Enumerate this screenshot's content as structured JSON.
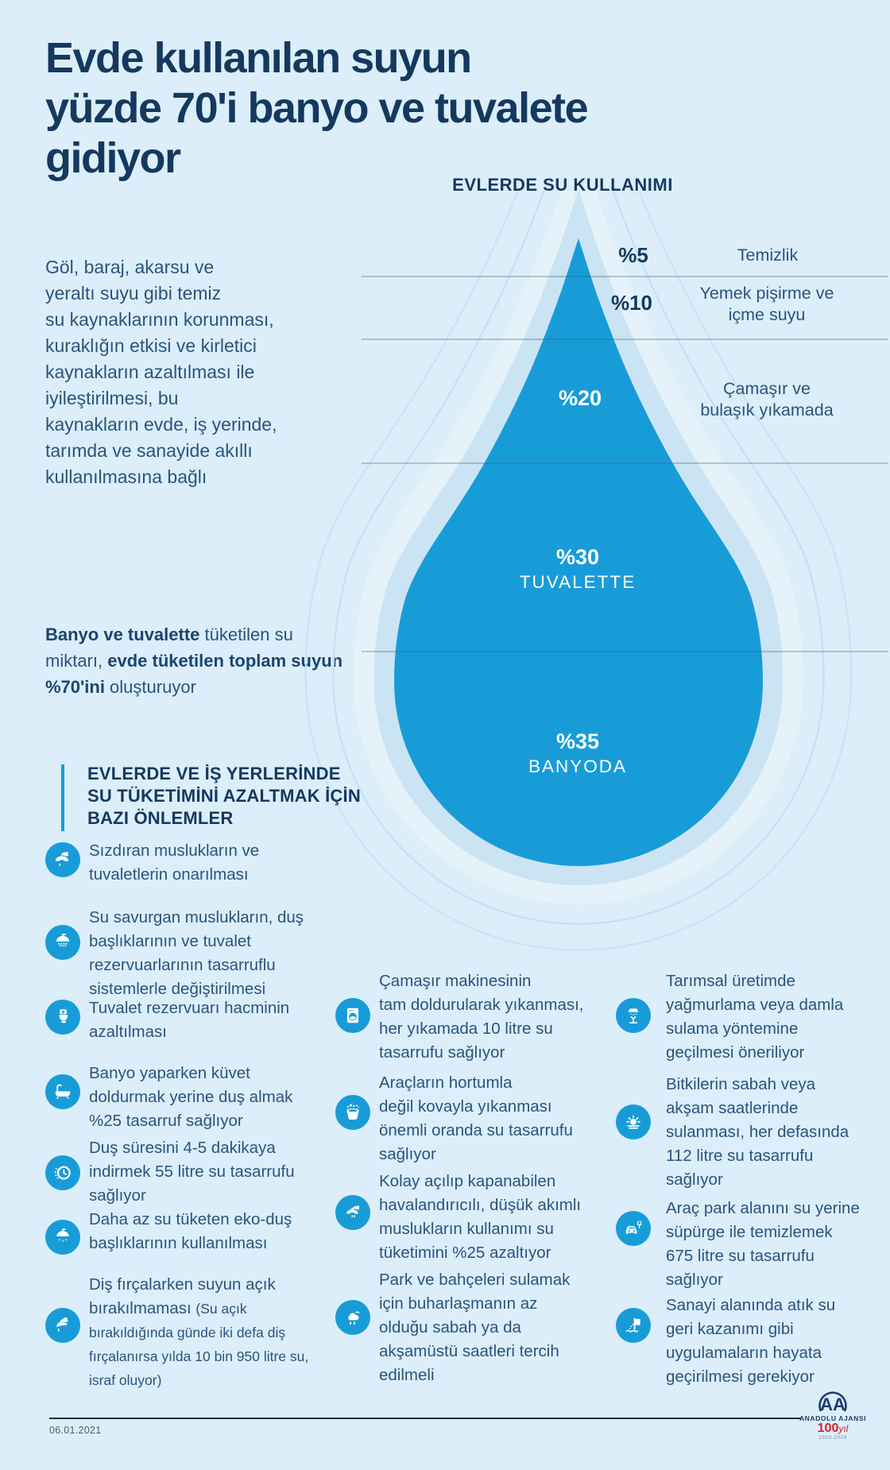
{
  "palette": {
    "background": "#dbeef9",
    "accent_blue": "#189cd8",
    "navy": "#15395e",
    "text_navy": "#2b547c",
    "drop_mid": "#cbe4f4",
    "drop_outer": "#e6f2fa",
    "red": "#d1232a"
  },
  "title": "Evde kullanılan suyun\nyüzde 70'i banyo ve tuvalete\ngidiyor",
  "intro": "Göl, baraj, akarsu ve\nyeraltı suyu gibi temiz\nsu kaynaklarının korunması,\nkuraklığın etkisi ve kirletici\nkaynakların azaltılması ile\niyileştirilmesi, bu\nkaynakların evde, iş yerinde,\ntarımda ve sanayide akıllı\nkullanılmasına bağlı",
  "highlight_segments": [
    {
      "t": "Banyo ve tuvalette",
      "b": true
    },
    {
      "t": " tüketilen su\nmiktarı, "
    },
    {
      "t": "evde tüketilen toplam suyun",
      "b": true
    },
    {
      "t": "\n"
    },
    {
      "t": "%70'ini",
      "b": true
    },
    {
      "t": " oluşturuyor"
    }
  ],
  "chart": {
    "title": "EVLERDE SU KULLANIMI",
    "rows": [
      {
        "pct": "%5",
        "label": "Temizlik"
      },
      {
        "pct": "%10",
        "label": "Yemek pişirme ve\niçme suyu"
      },
      {
        "pct": "%20",
        "label": "Çamaşır ve\nbulaşık yıkamada"
      },
      {
        "pct": "%30",
        "label": "TUVALETTE"
      },
      {
        "pct": "%35",
        "label": "BANYODA"
      }
    ]
  },
  "chart_data": {
    "type": "area",
    "variant": "proportional water-drop diagram",
    "title": "EVLERDE SU KULLANIMI",
    "categories": [
      "Temizlik",
      "Yemek pişirme ve içme suyu",
      "Çamaşır ve bulaşık yıkamada",
      "Tuvalette",
      "Banyoda"
    ],
    "values": [
      5,
      10,
      20,
      30,
      35
    ],
    "unit": "%",
    "labels": [
      "%5",
      "%10",
      "%20",
      "%30",
      "%35"
    ],
    "legend_position": "inline",
    "grid": "horizontal divider lines between segments"
  },
  "measures": {
    "heading": "EVLERDE VE İŞ YERLERİNDE\nSU TÜKETİMİNİ AZALTMAK İÇİN\nBAZI ÖNLEMLER",
    "columns": [
      {
        "items": [
          {
            "icon": "leaky-faucet",
            "text": "Sızdıran muslukların ve\ntuvaletlerin onarılması"
          },
          {
            "icon": "shower-head",
            "text": "Su savurgan muslukların, duş\nbaşlıklarının ve tuvalet\nrezervuarlarının tasarruflu\nsistemlerle değiştirilmesi"
          },
          {
            "icon": "toilet-cistern",
            "text": "Tuvalet rezervuarı hacminin\nazaltılması"
          },
          {
            "icon": "bathtub",
            "text": "Banyo yaparken küvet\ndoldurmak yerine duş almak\n%25 tasarruf sağlıyor"
          },
          {
            "icon": "timer",
            "text": "Duş süresini 4-5 dakikaya\nindirmek 55 litre su tasarrufu\nsağlıyor"
          },
          {
            "icon": "eco-shower",
            "text": "Daha az su tüketen eko-duş\nbaşlıklarının kullanılması"
          },
          {
            "icon": "tooth-brushing",
            "segments": [
              {
                "t": "Diş fırçalarken suyun açık\nbırakılmaması "
              },
              {
                "t": "(Su açık\nbırakıldığında günde iki defa diş\nfırçalanırsa yılda 10 bin 950 litre su,\nisraf oluyor)",
                "s": true
              }
            ]
          }
        ]
      },
      {
        "items": [
          {
            "icon": "washing-machine",
            "text": "Çamaşır makinesinin\ntam doldurularak yıkanması,\nher yıkamada 10 litre su\ntasarrufu sağlıyor"
          },
          {
            "icon": "wash-bucket",
            "text": "Araçların hortumla\ndeğil kovayla yıkanması\nönemli oranda su tasarrufu\nsağlıyor"
          },
          {
            "icon": "aerator-faucet",
            "text": "Kolay açılıp kapanabilen\nhavalandırıcılı, düşük akımlı\nmuslukların kullanımı su\ntüketimini %25 azaltıyor"
          },
          {
            "icon": "garden-watering",
            "text": "Park ve bahçeleri sulamak\niçin buharlaşmanın az\nolduğu sabah ya da\nakşamüstü saatleri tercih\nedilmeli"
          }
        ]
      },
      {
        "items": [
          {
            "icon": "drip-irrigation",
            "text": "Tarımsal üretimde\nyağmurlama veya damla\nsulama yöntemine\ngeçilmesi öneriliyor"
          },
          {
            "icon": "morning-watering",
            "text": "Bitkilerin sabah veya\nakşam saatlerinde\nsulanması, her defasında\n112 litre su tasarrufu\nsağlıyor"
          },
          {
            "icon": "car-park",
            "text": "Araç park alanını su yerine\nsüpürge ile temizlemek\n675 litre su tasarrufu\nsağlıyor"
          },
          {
            "icon": "wastewater-recycle",
            "text": "Sanayi alanında atık su\ngeri kazanımı gibi\nuygulamaların hayata\ngeçirilmesi gerekiyor"
          }
        ]
      }
    ]
  },
  "footer": {
    "date": "06.01.2021",
    "monogram": "AA",
    "agency": "ANADOLU AJANSI",
    "centennial": "100",
    "centennial_suffix": "yıl",
    "years": "1920-2020"
  }
}
